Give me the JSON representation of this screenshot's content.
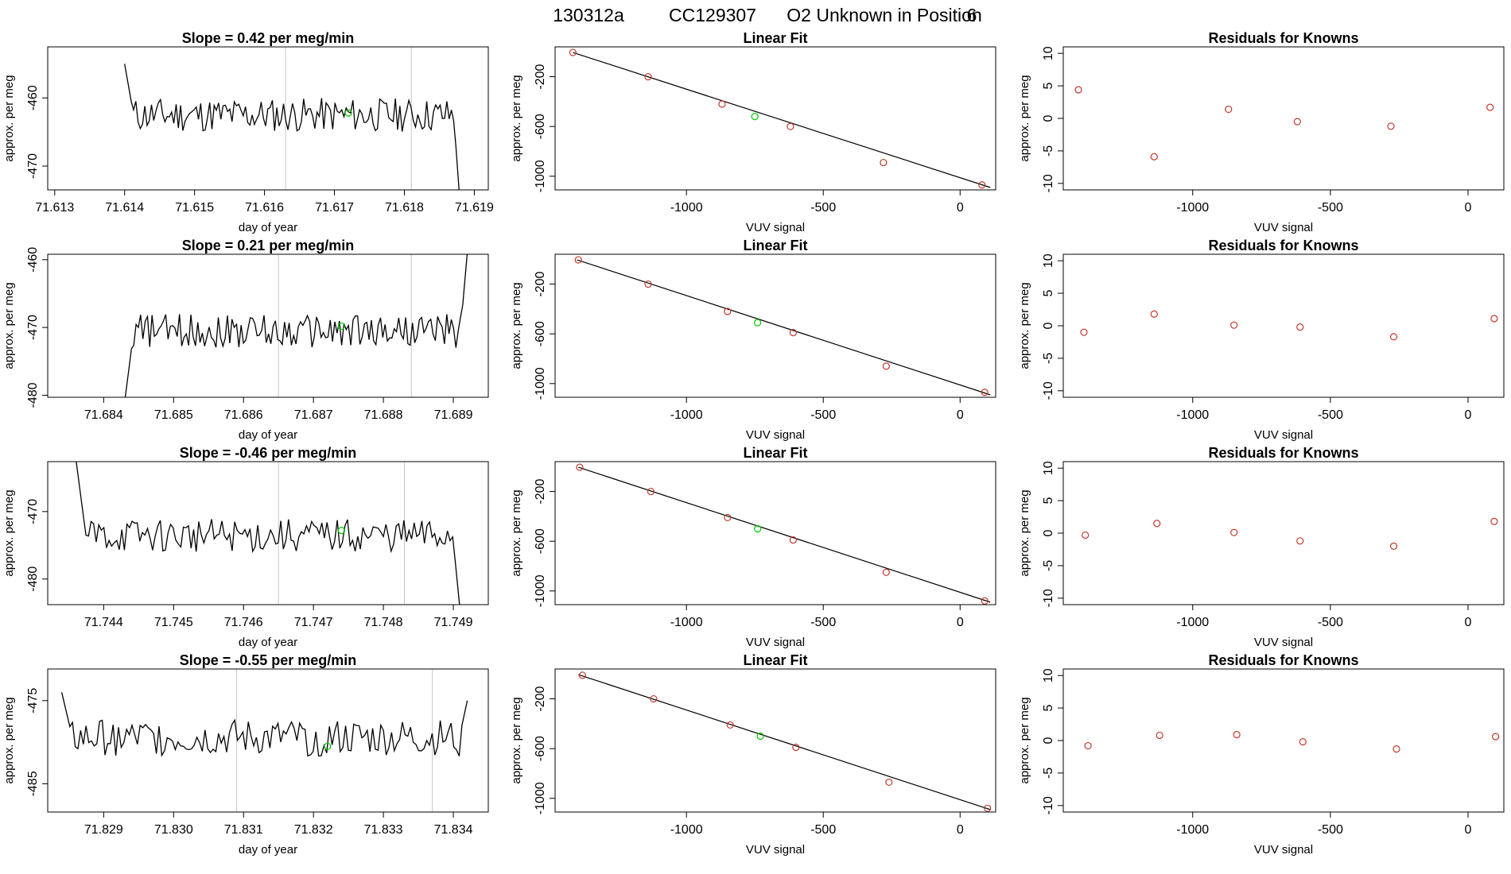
{
  "figure": {
    "run_id": "130312a",
    "cylinder": "CC129307",
    "description": "O2 Unknown in Position",
    "position": "6"
  },
  "colors": {
    "line": "#000000",
    "known_point": "#c0392b",
    "unknown_point": "#00cc00",
    "cycle_marker": "#c8c8c8"
  },
  "chart_data": [
    {
      "type": "line",
      "panel": "timeseries",
      "row": 0,
      "title_prefix": "Slope = ",
      "slope": "0.42",
      "title_suffix": " per meg/min",
      "xlabel": "day of year",
      "ylabel": "approx. per meg",
      "xlim": [
        71.6129,
        71.6192
      ],
      "ylim": [
        -473.5,
        -452.5
      ],
      "xticks": [
        "71.613",
        "71.614",
        "71.615",
        "71.616",
        "71.617",
        "71.618",
        "71.619"
      ],
      "yticks": [
        "-460",
        "-470"
      ],
      "ytick_values": [
        -460,
        -470
      ],
      "segment": [
        71.614,
        71.6188
      ],
      "start_value": -455,
      "level": -462.5,
      "end_value": -476,
      "amplitude": 2.5,
      "cycle_markers": [
        71.6163,
        71.6181
      ],
      "unknown_point": {
        "x": 71.6172,
        "y": -462.2
      }
    },
    {
      "type": "scatter",
      "panel": "linear_fit",
      "row": 0,
      "title": "Linear Fit",
      "xlabel": "VUV signal",
      "ylabel": "approx. per meg",
      "xlim": [
        -1480,
        130
      ],
      "ylim": [
        -1110,
        40
      ],
      "xticks": [
        "-1000",
        "-500",
        "0"
      ],
      "xtick_values": [
        -1000,
        -500,
        0
      ],
      "yticks": [
        "-200",
        "-600",
        "-1000"
      ],
      "ytick_values": [
        -200,
        -600,
        -1000
      ],
      "fit_line": {
        "x": [
          -1415,
          110
        ],
        "y": [
          -5,
          -1090
        ]
      },
      "known_points": {
        "x": [
          -1415,
          -1140,
          -870,
          -620,
          -280,
          80
        ],
        "y": [
          -5,
          -200,
          -420,
          -600,
          -890,
          -1070
        ]
      },
      "unknown_point": {
        "x": -750,
        "y": -520
      }
    },
    {
      "type": "scatter",
      "panel": "residuals",
      "row": 0,
      "title": "Residuals for Knowns",
      "xlabel": "VUV signal",
      "ylabel": "approx. per meg",
      "xlim": [
        -1470,
        130
      ],
      "ylim": [
        -11,
        11
      ],
      "xticks": [
        "-1000",
        "-500",
        "0"
      ],
      "xtick_values": [
        -1000,
        -500,
        0
      ],
      "yticks": [
        "10",
        "5",
        "0",
        "-5",
        "-10"
      ],
      "ytick_values": [
        10,
        5,
        0,
        -5,
        -10
      ],
      "points": {
        "x": [
          -1415,
          -1140,
          -870,
          -620,
          -280,
          80
        ],
        "y": [
          4.4,
          -5.9,
          1.4,
          -0.5,
          -1.2,
          1.7
        ]
      }
    },
    {
      "type": "line",
      "panel": "timeseries",
      "row": 1,
      "title_prefix": "Slope = ",
      "slope": "0.21",
      "title_suffix": " per meg/min",
      "xlabel": "day of year",
      "ylabel": "approx. per meg",
      "xlim": [
        71.6832,
        71.6895
      ],
      "ylim": [
        -480.3,
        -459.2
      ],
      "xticks": [
        "71.684",
        "71.685",
        "71.686",
        "71.687",
        "71.688",
        "71.689"
      ],
      "yticks": [
        "-460",
        "-470",
        "-480"
      ],
      "ytick_values": [
        -460,
        -470,
        -480
      ],
      "segment": [
        71.6843,
        71.6892
      ],
      "start_value": -481,
      "level": -470.5,
      "end_value": -459,
      "amplitude": 2.5,
      "cycle_markers": [
        71.6865,
        71.6884
      ],
      "unknown_point": {
        "x": 71.6874,
        "y": -469.8
      }
    },
    {
      "type": "scatter",
      "panel": "linear_fit",
      "row": 1,
      "title": "Linear Fit",
      "xlabel": "VUV signal",
      "ylabel": "approx. per meg",
      "xlim": [
        -1480,
        130
      ],
      "ylim": [
        -1110,
        40
      ],
      "xticks": [
        "-1000",
        "-500",
        "0"
      ],
      "xtick_values": [
        -1000,
        -500,
        0
      ],
      "yticks": [
        "-200",
        "-600",
        "-1000"
      ],
      "ytick_values": [
        -200,
        -600,
        -1000
      ],
      "fit_line": {
        "x": [
          -1400,
          110
        ],
        "y": [
          -5,
          -1090
        ]
      },
      "known_points": {
        "x": [
          -1395,
          -1140,
          -850,
          -610,
          -270,
          90
        ],
        "y": [
          -5,
          -200,
          -420,
          -590,
          -860,
          -1070
        ]
      },
      "unknown_point": {
        "x": -740,
        "y": -510
      }
    },
    {
      "type": "scatter",
      "panel": "residuals",
      "row": 1,
      "title": "Residuals for Knowns",
      "xlabel": "VUV signal",
      "ylabel": "approx. per meg",
      "xlim": [
        -1470,
        130
      ],
      "ylim": [
        -11,
        11
      ],
      "xticks": [
        "-1000",
        "-500",
        "0"
      ],
      "xtick_values": [
        -1000,
        -500,
        0
      ],
      "yticks": [
        "10",
        "5",
        "0",
        "-5",
        "-10"
      ],
      "ytick_values": [
        10,
        5,
        0,
        -5,
        -10
      ],
      "points": {
        "x": [
          -1395,
          -1140,
          -850,
          -610,
          -270,
          95
        ],
        "y": [
          -1.0,
          1.8,
          0.1,
          -0.2,
          -1.7,
          1.1
        ]
      }
    },
    {
      "type": "line",
      "panel": "timeseries",
      "row": 2,
      "title_prefix": "Slope = ",
      "slope": "-0.46",
      "title_suffix": " per meg/min",
      "xlabel": "day of year",
      "ylabel": "approx. per meg",
      "xlim": [
        71.7432,
        71.7495
      ],
      "ylim": [
        -483.8,
        -462.6
      ],
      "xticks": [
        "71.744",
        "71.745",
        "71.746",
        "71.747",
        "71.748",
        "71.749"
      ],
      "yticks": [
        "-470",
        "-480"
      ],
      "ytick_values": [
        -470,
        -480
      ],
      "segment": [
        71.7436,
        71.7491
      ],
      "start_value": -462,
      "level": -473.5,
      "end_value": -485,
      "amplitude": 2.5,
      "cycle_markers": [
        71.7465,
        71.7483
      ],
      "unknown_point": {
        "x": 71.7474,
        "y": -472.8
      }
    },
    {
      "type": "scatter",
      "panel": "linear_fit",
      "row": 2,
      "title": "Linear Fit",
      "xlabel": "VUV signal",
      "ylabel": "approx. per meg",
      "xlim": [
        -1480,
        130
      ],
      "ylim": [
        -1110,
        40
      ],
      "xticks": [
        "-1000",
        "-500",
        "0"
      ],
      "xtick_values": [
        -1000,
        -500,
        0
      ],
      "yticks": [
        "-200",
        "-600",
        "-1000"
      ],
      "ytick_values": [
        -200,
        -600,
        -1000
      ],
      "fit_line": {
        "x": [
          -1395,
          110
        ],
        "y": [
          -5,
          -1090
        ]
      },
      "known_points": {
        "x": [
          -1390,
          -1130,
          -850,
          -610,
          -270,
          90
        ],
        "y": [
          -5,
          -200,
          -410,
          -590,
          -850,
          -1080
        ]
      },
      "unknown_point": {
        "x": -740,
        "y": -500
      }
    },
    {
      "type": "scatter",
      "panel": "residuals",
      "row": 2,
      "title": "Residuals for Knowns",
      "xlabel": "VUV signal",
      "ylabel": "approx. per meg",
      "xlim": [
        -1470,
        130
      ],
      "ylim": [
        -11,
        11
      ],
      "xticks": [
        "-1000",
        "-500",
        "0"
      ],
      "xtick_values": [
        -1000,
        -500,
        0
      ],
      "yticks": [
        "10",
        "5",
        "0",
        "-5",
        "-10"
      ],
      "ytick_values": [
        10,
        5,
        0,
        -5,
        -10
      ],
      "points": {
        "x": [
          -1390,
          -1130,
          -850,
          -610,
          -270,
          95
        ],
        "y": [
          -0.3,
          1.5,
          0.1,
          -1.2,
          -2.0,
          1.8
        ]
      }
    },
    {
      "type": "line",
      "panel": "timeseries",
      "row": 3,
      "title_prefix": "Slope = ",
      "slope": "-0.55",
      "title_suffix": " per meg/min",
      "xlabel": "day of year",
      "ylabel": "approx. per meg",
      "xlim": [
        71.8282,
        71.8345
      ],
      "ylim": [
        -488.4,
        -471.2
      ],
      "xticks": [
        "71.829",
        "71.830",
        "71.831",
        "71.832",
        "71.833",
        "71.834"
      ],
      "yticks": [
        "-475",
        "-485"
      ],
      "ytick_values": [
        -475,
        -485
      ],
      "segment": [
        71.8284,
        71.8342
      ],
      "start_value": -474,
      "level": -479.5,
      "end_value": -475,
      "amplitude": 2.2,
      "cycle_markers": [
        71.8309,
        71.8337
      ],
      "unknown_point": {
        "x": 71.8322,
        "y": -480.5
      }
    },
    {
      "type": "scatter",
      "panel": "linear_fit",
      "row": 3,
      "title": "Linear Fit",
      "xlabel": "VUV signal",
      "ylabel": "approx. per meg",
      "xlim": [
        -1480,
        130
      ],
      "ylim": [
        -1110,
        40
      ],
      "xticks": [
        "-1000",
        "-500",
        "0"
      ],
      "xtick_values": [
        -1000,
        -500,
        0
      ],
      "yticks": [
        "-200",
        "-600",
        "-1000"
      ],
      "ytick_values": [
        -200,
        -600,
        -1000
      ],
      "fit_line": {
        "x": [
          -1395,
          110
        ],
        "y": [
          -5,
          -1090
        ]
      },
      "known_points": {
        "x": [
          -1380,
          -1120,
          -840,
          -600,
          -260,
          100
        ],
        "y": [
          -10,
          -200,
          -410,
          -590,
          -870,
          -1080
        ]
      },
      "unknown_point": {
        "x": -730,
        "y": -500
      }
    },
    {
      "type": "scatter",
      "panel": "residuals",
      "row": 3,
      "title": "Residuals for Knowns",
      "xlabel": "VUV signal",
      "ylabel": "approx. per meg",
      "xlim": [
        -1470,
        130
      ],
      "ylim": [
        -11,
        11
      ],
      "xticks": [
        "-1000",
        "-500",
        "0"
      ],
      "xtick_values": [
        -1000,
        -500,
        0
      ],
      "yticks": [
        "10",
        "5",
        "0",
        "-5",
        "-10"
      ],
      "ytick_values": [
        10,
        5,
        0,
        -5,
        -10
      ],
      "points": {
        "x": [
          -1380,
          -1120,
          -840,
          -600,
          -260,
          100
        ],
        "y": [
          -0.8,
          0.8,
          0.9,
          -0.2,
          -1.3,
          0.6
        ]
      }
    }
  ]
}
